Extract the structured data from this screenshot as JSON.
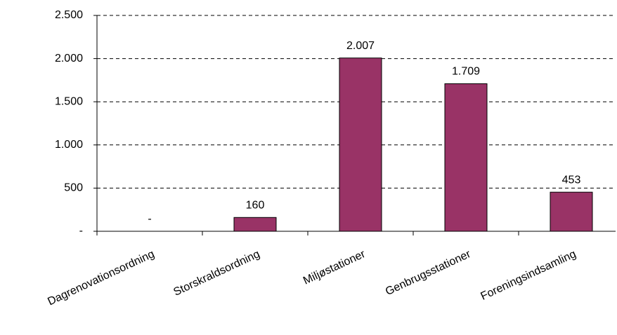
{
  "chart_data": {
    "type": "bar",
    "categories": [
      "Dagrenovationsordning",
      "Storskraldsordning",
      "Miljøstationer",
      "Genbrugsstationer",
      "Foreningsindsamling"
    ],
    "values": [
      0,
      160,
      2007,
      1709,
      453
    ],
    "value_labels": [
      "-",
      "160",
      "2.007",
      "1.709",
      "453"
    ],
    "color": "#993366",
    "ylim": [
      0,
      2500
    ],
    "yticks": [
      {
        "value": 0,
        "label": "-"
      },
      500,
      {
        "value": 1000,
        "label": "1.000"
      },
      {
        "value": 1500,
        "label": "1.500"
      },
      {
        "value": 2000,
        "label": "2.000"
      },
      {
        "value": 2500,
        "label": "2.500"
      }
    ],
    "grid": true
  }
}
